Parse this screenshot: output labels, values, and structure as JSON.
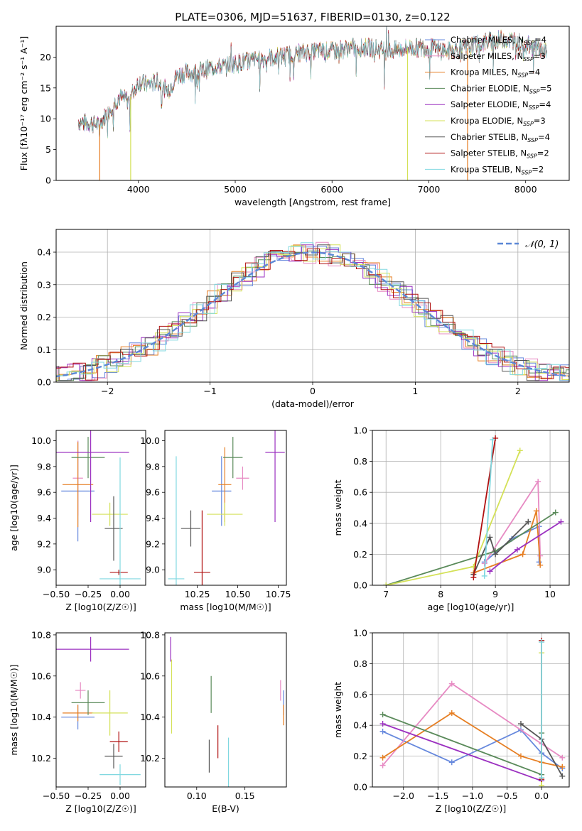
{
  "chart_data": [
    {
      "id": "spectrum",
      "type": "line",
      "title": "PLATE=0306, MJD=51637, FIBERID=0130, z=0.122",
      "xlabel": "wavelength [Angstrom, rest frame]",
      "ylabel": "Flux [fλ10⁻¹⁷ erg cm⁻² s⁻¹ A⁻¹]",
      "xlim": [
        3150,
        8450
      ],
      "ylim": [
        0,
        25
      ],
      "xticks": [
        4000,
        5000,
        6000,
        7000,
        8000
      ],
      "yticks": [
        0,
        5,
        10,
        15,
        20
      ],
      "legend_position": "upper right",
      "series": [
        {
          "name": "Chabrier MILES, NSSP=4",
          "color": "#6688dd"
        },
        {
          "name": "Salpeter MILES, NSSP=3",
          "color": "#e78ac3"
        },
        {
          "name": "Kroupa MILES, NSSP=4",
          "color": "#e67e22"
        },
        {
          "name": "Chabrier ELODIE, NSSP=5",
          "color": "#5a8a5a"
        },
        {
          "name": "Salpeter ELODIE, NSSP=4",
          "color": "#9b30c0"
        },
        {
          "name": "Kroupa ELODIE, NSSP=3",
          "color": "#d4e157"
        },
        {
          "name": "Chabrier STELIB, NSSP=4",
          "color": "#555555"
        },
        {
          "name": "Salpeter STELIB, NSSP=2",
          "color": "#b01010"
        },
        {
          "name": "Kroupa STELIB, NSSP=2",
          "color": "#80d8e0"
        }
      ],
      "continuum": {
        "x": [
          3380,
          3500,
          3600,
          3700,
          3800,
          3900,
          4000,
          4100,
          4200,
          4300,
          4400,
          4500,
          4600,
          4700,
          4800,
          4900,
          5000,
          5200,
          5400,
          5600,
          5800,
          6000,
          6200,
          6400,
          6600,
          6800,
          7000,
          7200,
          7400,
          7600,
          7800,
          8000,
          8200
        ],
        "y": [
          9.5,
          9.3,
          9.0,
          11.5,
          13.5,
          13.0,
          16.0,
          15.5,
          16.0,
          14.5,
          17.0,
          17.5,
          17.5,
          18.0,
          18.5,
          18.5,
          19.0,
          19.5,
          20.0,
          20.5,
          21.0,
          21.0,
          21.5,
          21.5,
          21.0,
          21.5,
          21.5,
          21.0,
          21.5,
          22.5,
          23.0,
          22.0,
          21.0
        ]
      },
      "emission_lines": [
        {
          "x": 6563,
          "y": 25
        },
        {
          "x": 4959,
          "y": 22
        },
        {
          "x": 6583,
          "y": 24
        }
      ],
      "artifacts": [
        {
          "x": 3600,
          "series": "Kroupa MILES, NSSP=4"
        },
        {
          "x": 3920,
          "series": "Kroupa ELODIE, NSSP=3"
        },
        {
          "x": 6780,
          "series": "Kroupa ELODIE, NSSP=3"
        },
        {
          "x": 7400,
          "series": "Kroupa MILES, NSSP=4"
        }
      ]
    },
    {
      "id": "residual-hist",
      "type": "line",
      "xlabel": "(data-model)/error",
      "ylabel": "Normed distribution",
      "xlim": [
        -2.5,
        2.5
      ],
      "ylim": [
        0,
        0.47
      ],
      "xticks": [
        -2,
        -1,
        0,
        1,
        2
      ],
      "yticks": [
        0.0,
        0.1,
        0.2,
        0.3,
        0.4
      ],
      "grid": true,
      "legend": [
        "𝒩(0, 1)"
      ],
      "legend_position": "upper right",
      "series": [
        {
          "name": "N(0,1)",
          "type": "gaussian",
          "mean": 0,
          "sigma": 1,
          "color": "#5b87d6",
          "dashed": true
        }
      ],
      "histograms_note_colors": [
        "#6688dd",
        "#e78ac3",
        "#e67e22",
        "#5a8a5a",
        "#9b30c0",
        "#d4e157",
        "#555555",
        "#b01010",
        "#80d8e0"
      ]
    },
    {
      "id": "age-vs-Z",
      "type": "scatter",
      "xlabel": "Z [log10(Z/Z☉)]",
      "ylabel": "age  [log10(age/yr)]",
      "xlim": [
        -0.5,
        0.2
      ],
      "ylim": [
        8.88,
        10.08
      ],
      "xticks": [
        -0.5,
        -0.25,
        0.0
      ],
      "yticks": [
        9.0,
        9.2,
        9.4,
        9.6,
        9.8,
        10.0
      ],
      "points": [
        {
          "x": -0.33,
          "y": 9.61,
          "xerr": 0.13,
          "yerr": 0.39,
          "color": "#6688dd"
        },
        {
          "x": -0.33,
          "y": 9.71,
          "xerr": 0.04,
          "yerr": 0.29,
          "color": "#e78ac3"
        },
        {
          "x": -0.33,
          "y": 9.66,
          "xerr": 0.12,
          "yerr": 0.33,
          "color": "#e67e22"
        },
        {
          "x": -0.25,
          "y": 9.87,
          "xerr": 0.13,
          "yerr": 0.16,
          "color": "#5a8a5a"
        },
        {
          "x": -0.23,
          "y": 9.91,
          "xerr": 0.3,
          "yerr": 0.54,
          "color": "#9b30c0"
        },
        {
          "x": -0.08,
          "y": 9.43,
          "xerr": 0.14,
          "yerr": 0.09,
          "color": "#d4e157"
        },
        {
          "x": -0.05,
          "y": 9.32,
          "xerr": 0.07,
          "yerr": 0.25,
          "color": "#555555"
        },
        {
          "x": -0.01,
          "y": 8.98,
          "xerr": 0.07,
          "yerr": 0.02,
          "color": "#b01010"
        },
        {
          "x": 0.0,
          "y": 8.93,
          "xerr": 0.16,
          "yerr": 0.94,
          "color": "#80d8e0"
        }
      ]
    },
    {
      "id": "age-vs-mass",
      "type": "scatter",
      "xlabel": "mass [log10(M/M☉)]",
      "ylabel": "",
      "xlim": [
        10.05,
        10.8
      ],
      "ylim": [
        8.88,
        10.08
      ],
      "xticks": [
        10.25,
        10.5,
        10.75
      ],
      "yticks": [
        9.0,
        9.2,
        9.4,
        9.6,
        9.8,
        10.0
      ],
      "points": [
        {
          "x": 10.4,
          "y": 9.61,
          "xerr": 0.06,
          "yerr": 0.27,
          "color": "#6688dd"
        },
        {
          "x": 10.53,
          "y": 9.71,
          "xerr": 0.04,
          "yerr": 0.09,
          "color": "#e78ac3"
        },
        {
          "x": 10.42,
          "y": 9.66,
          "xerr": 0.04,
          "yerr": 0.29,
          "color": "#e67e22"
        },
        {
          "x": 10.47,
          "y": 9.87,
          "xerr": 0.06,
          "yerr": 0.16,
          "color": "#5a8a5a"
        },
        {
          "x": 10.73,
          "y": 9.91,
          "xerr": 0.06,
          "yerr": 0.54,
          "color": "#9b30c0"
        },
        {
          "x": 10.42,
          "y": 9.43,
          "xerr": 0.11,
          "yerr": 0.09,
          "color": "#d4e157"
        },
        {
          "x": 10.21,
          "y": 9.32,
          "xerr": 0.06,
          "yerr": 0.14,
          "color": "#555555"
        },
        {
          "x": 10.28,
          "y": 8.98,
          "xerr": 0.05,
          "yerr": 0.48,
          "color": "#b01010"
        },
        {
          "x": 10.12,
          "y": 8.93,
          "xerr": 0.05,
          "yerr": 0.95,
          "color": "#80d8e0"
        }
      ]
    },
    {
      "id": "weight-vs-age",
      "type": "line",
      "xlabel": "age  [log10(age/yr)]",
      "ylabel": "mass weight",
      "xlim": [
        6.75,
        10.35
      ],
      "ylim": [
        0,
        1.0
      ],
      "xticks": [
        7,
        8,
        9,
        10
      ],
      "yticks": [
        0.0,
        0.2,
        0.4,
        0.6,
        0.8,
        1.0
      ],
      "grid": true,
      "series": [
        {
          "color": "#6688dd",
          "x": [
            8.8,
            9.3,
            9.8,
            9.8
          ],
          "y": [
            0.15,
            0.3,
            0.38,
            0.15
          ]
        },
        {
          "color": "#e78ac3",
          "x": [
            8.8,
            9.78,
            9.82
          ],
          "y": [
            0.14,
            0.67,
            0.19
          ]
        },
        {
          "color": "#e67e22",
          "x": [
            8.6,
            9.5,
            9.75,
            9.82
          ],
          "y": [
            0.08,
            0.2,
            0.48,
            0.13
          ]
        },
        {
          "color": "#5a8a5a",
          "x": [
            7.0,
            9.0,
            10.1
          ],
          "y": [
            0.0,
            0.22,
            0.47
          ]
        },
        {
          "color": "#9b30c0",
          "x": [
            8.9,
            9.4,
            10.2
          ],
          "y": [
            0.09,
            0.23,
            0.41
          ]
        },
        {
          "color": "#d4e157",
          "x": [
            7.0,
            8.6,
            9.45
          ],
          "y": [
            0.0,
            0.12,
            0.87
          ]
        },
        {
          "color": "#555555",
          "x": [
            8.6,
            8.9,
            9.0,
            9.6
          ],
          "y": [
            0.07,
            0.31,
            0.2,
            0.41
          ]
        },
        {
          "color": "#b01010",
          "x": [
            8.6,
            9.0
          ],
          "y": [
            0.05,
            0.95
          ]
        },
        {
          "color": "#80d8e0",
          "x": [
            8.8,
            8.95
          ],
          "y": [
            0.06,
            0.94
          ]
        }
      ]
    },
    {
      "id": "mass-vs-Z",
      "type": "scatter",
      "xlabel": "Z [log10(Z/Z☉)]",
      "ylabel": "mass [log10(M/M☉)]",
      "xlim": [
        -0.5,
        0.2
      ],
      "ylim": [
        10.06,
        10.81
      ],
      "xticks": [
        -0.5,
        -0.25,
        0.0
      ],
      "yticks": [
        10.2,
        10.4,
        10.6,
        10.8
      ],
      "points": [
        {
          "x": -0.33,
          "y": 10.4,
          "xerr": 0.13,
          "yerr": 0.06,
          "color": "#6688dd"
        },
        {
          "x": -0.31,
          "y": 10.53,
          "xerr": 0.04,
          "yerr": 0.04,
          "color": "#e78ac3"
        },
        {
          "x": -0.33,
          "y": 10.42,
          "xerr": 0.12,
          "yerr": 0.04,
          "color": "#e67e22"
        },
        {
          "x": -0.25,
          "y": 10.47,
          "xerr": 0.13,
          "yerr": 0.06,
          "color": "#5a8a5a"
        },
        {
          "x": -0.23,
          "y": 10.73,
          "xerr": 0.3,
          "yerr": 0.06,
          "color": "#9b30c0"
        },
        {
          "x": -0.08,
          "y": 10.42,
          "xerr": 0.14,
          "yerr": 0.11,
          "color": "#d4e157"
        },
        {
          "x": -0.05,
          "y": 10.21,
          "xerr": 0.07,
          "yerr": 0.06,
          "color": "#555555"
        },
        {
          "x": -0.01,
          "y": 10.28,
          "xerr": 0.07,
          "yerr": 0.05,
          "color": "#b01010"
        },
        {
          "x": 0.0,
          "y": 10.12,
          "xerr": 0.16,
          "yerr": 0.05,
          "color": "#80d8e0"
        }
      ]
    },
    {
      "id": "mass-vs-ebv",
      "type": "scatter",
      "xlabel": "E(B-V)",
      "ylabel": "",
      "xlim": [
        0.067,
        0.193
      ],
      "ylim": [
        10.06,
        10.81
      ],
      "xticks": [
        0.1,
        0.15
      ],
      "yticks": [
        10.2,
        10.4,
        10.6,
        10.8
      ],
      "points": [
        {
          "x": 0.19,
          "y": 10.47,
          "yerr": 0.06,
          "color": "#6688dd"
        },
        {
          "x": 0.187,
          "y": 10.53,
          "yerr": 0.05,
          "color": "#e78ac3"
        },
        {
          "x": 0.19,
          "y": 10.41,
          "yerr": 0.05,
          "color": "#e67e22"
        },
        {
          "x": 0.115,
          "y": 10.51,
          "yerr": 0.09,
          "color": "#5a8a5a"
        },
        {
          "x": 0.073,
          "y": 10.73,
          "yerr": 0.06,
          "color": "#9b30c0"
        },
        {
          "x": 0.074,
          "y": 10.5,
          "yerr": 0.18,
          "color": "#d4e157"
        },
        {
          "x": 0.113,
          "y": 10.21,
          "yerr": 0.08,
          "color": "#555555"
        },
        {
          "x": 0.122,
          "y": 10.28,
          "yerr": 0.08,
          "color": "#b01010"
        },
        {
          "x": 0.133,
          "y": 10.18,
          "yerr": 0.12,
          "color": "#80d8e0"
        }
      ]
    },
    {
      "id": "weight-vs-Z",
      "type": "line",
      "xlabel": "Z [log10(Z/Z☉)]",
      "ylabel": "mass weight",
      "xlim": [
        -2.45,
        0.4
      ],
      "ylim": [
        0,
        1.0
      ],
      "xticks": [
        -2.0,
        -1.5,
        -1.0,
        -0.5,
        0.0
      ],
      "yticks": [
        0.0,
        0.2,
        0.4,
        0.6,
        0.8,
        1.0
      ],
      "grid": true,
      "series": [
        {
          "color": "#6688dd",
          "x": [
            -2.3,
            -1.3,
            -0.3,
            0.0,
            0.3
          ],
          "y": [
            0.36,
            0.16,
            0.37,
            0.22,
            0.12
          ]
        },
        {
          "color": "#e78ac3",
          "x": [
            -2.3,
            -1.3,
            0.0,
            0.3
          ],
          "y": [
            0.14,
            0.67,
            0.28,
            0.19
          ]
        },
        {
          "color": "#e67e22",
          "x": [
            -2.3,
            -1.3,
            -0.3,
            0.0,
            0.3
          ],
          "y": [
            0.19,
            0.48,
            0.2,
            0.16,
            0.13
          ]
        },
        {
          "color": "#5a8a5a",
          "x": [
            -2.3,
            0.0,
            0.0
          ],
          "y": [
            0.47,
            0.08,
            0.35
          ]
        },
        {
          "color": "#9b30c0",
          "x": [
            -2.3,
            0.0
          ],
          "y": [
            0.41,
            0.04
          ]
        },
        {
          "color": "#d4e157",
          "x": [
            0.0,
            0.0
          ],
          "y": [
            0.01,
            0.87
          ]
        },
        {
          "color": "#555555",
          "x": [
            -0.3,
            0.0,
            0.3
          ],
          "y": [
            0.41,
            0.31,
            0.07
          ]
        },
        {
          "color": "#b01010",
          "x": [
            0.0,
            0.0
          ],
          "y": [
            0.05,
            0.95
          ]
        },
        {
          "color": "#80d8e0",
          "x": [
            0.0,
            0.0
          ],
          "y": [
            0.06,
            0.94
          ]
        }
      ]
    }
  ]
}
